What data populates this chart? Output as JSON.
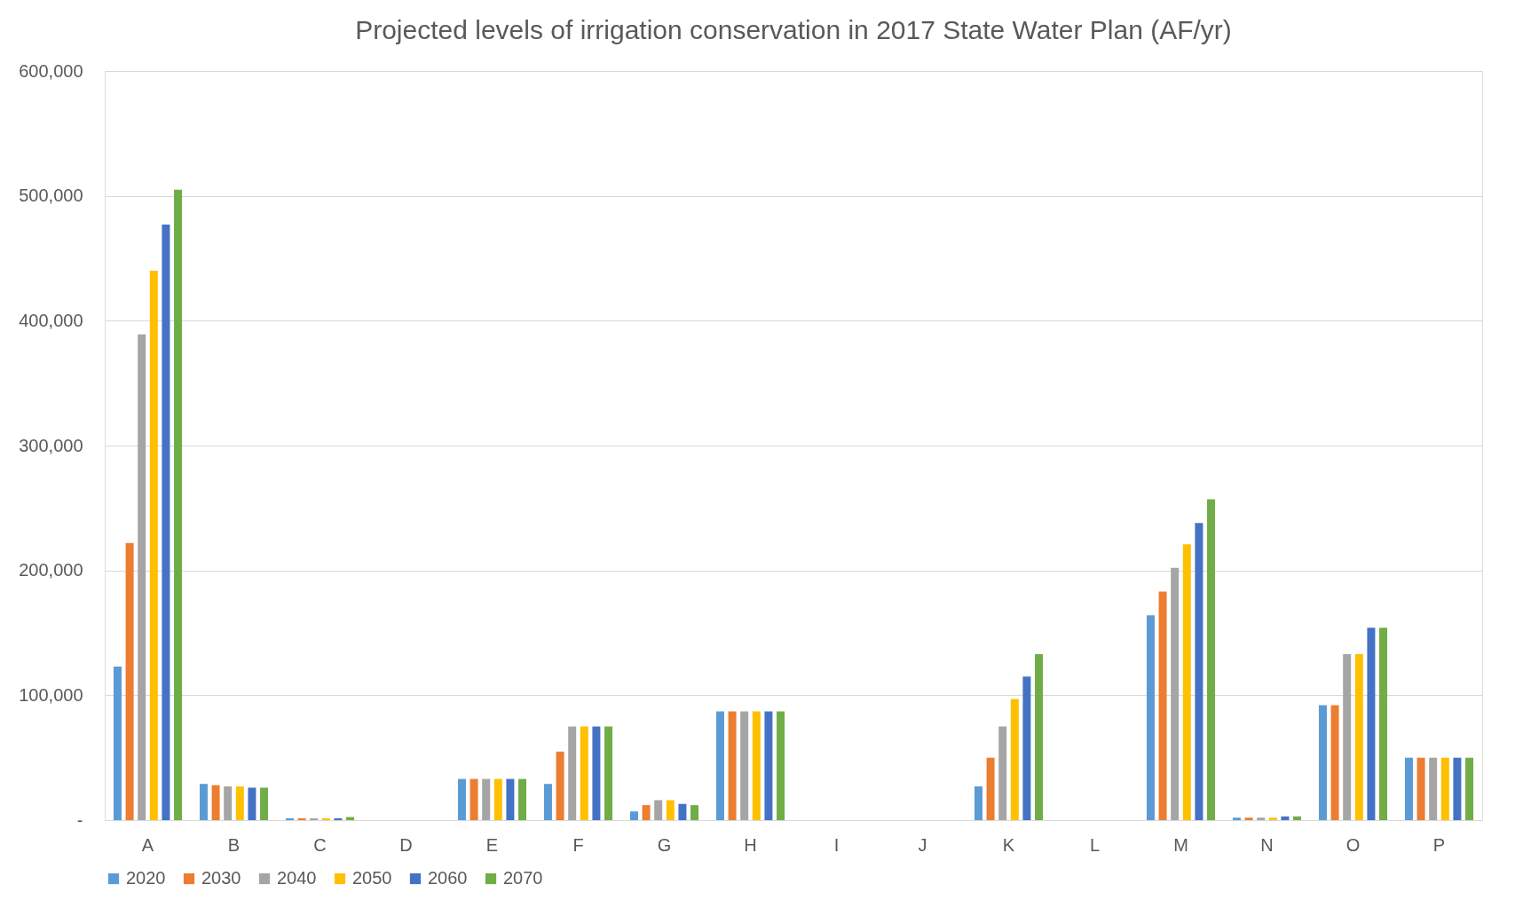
{
  "chart_data": {
    "type": "bar",
    "title": "Projected levels of irrigation conservation  in 2017 State Water Plan (AF/yr)",
    "categories": [
      "A",
      "B",
      "C",
      "D",
      "E",
      "F",
      "G",
      "H",
      "I",
      "J",
      "K",
      "L",
      "M",
      "N",
      "O",
      "P"
    ],
    "series": [
      {
        "name": "2020",
        "color": "#5b9bd5",
        "values": [
          123000,
          29000,
          1500,
          0,
          33000,
          29000,
          7000,
          87000,
          0,
          0,
          27000,
          0,
          164000,
          2000,
          92000,
          50000
        ]
      },
      {
        "name": "2030",
        "color": "#ed7d31",
        "values": [
          222000,
          28000,
          1500,
          0,
          33000,
          55000,
          12000,
          87000,
          0,
          0,
          50000,
          0,
          183000,
          2000,
          92000,
          50000
        ]
      },
      {
        "name": "2040",
        "color": "#a5a5a5",
        "values": [
          389000,
          27000,
          1500,
          0,
          33000,
          75000,
          16000,
          87000,
          0,
          0,
          75000,
          0,
          202000,
          2000,
          133000,
          50000
        ]
      },
      {
        "name": "2050",
        "color": "#ffc000",
        "values": [
          440000,
          27000,
          1500,
          0,
          33000,
          75000,
          16000,
          87000,
          0,
          0,
          97000,
          0,
          221000,
          2000,
          133000,
          50000
        ]
      },
      {
        "name": "2060",
        "color": "#4472c4",
        "values": [
          477000,
          26000,
          1500,
          0,
          33000,
          75000,
          13000,
          87000,
          0,
          0,
          115000,
          0,
          238000,
          3000,
          154000,
          50000
        ]
      },
      {
        "name": "2070",
        "color": "#70ad47",
        "values": [
          505000,
          26000,
          2500,
          0,
          33000,
          75000,
          12000,
          87000,
          0,
          0,
          133000,
          0,
          257000,
          3000,
          154000,
          50000
        ]
      }
    ],
    "ylim": [
      0,
      600000
    ],
    "yticks": [
      {
        "value": 0,
        "label": "-"
      },
      {
        "value": 100000,
        "label": "100,000"
      },
      {
        "value": 200000,
        "label": "200,000"
      },
      {
        "value": 300000,
        "label": "300,000"
      },
      {
        "value": 400000,
        "label": "400,000"
      },
      {
        "value": 500000,
        "label": "500,000"
      },
      {
        "value": 600000,
        "label": "600,000"
      }
    ],
    "grid": "y",
    "legend": "bottom"
  }
}
